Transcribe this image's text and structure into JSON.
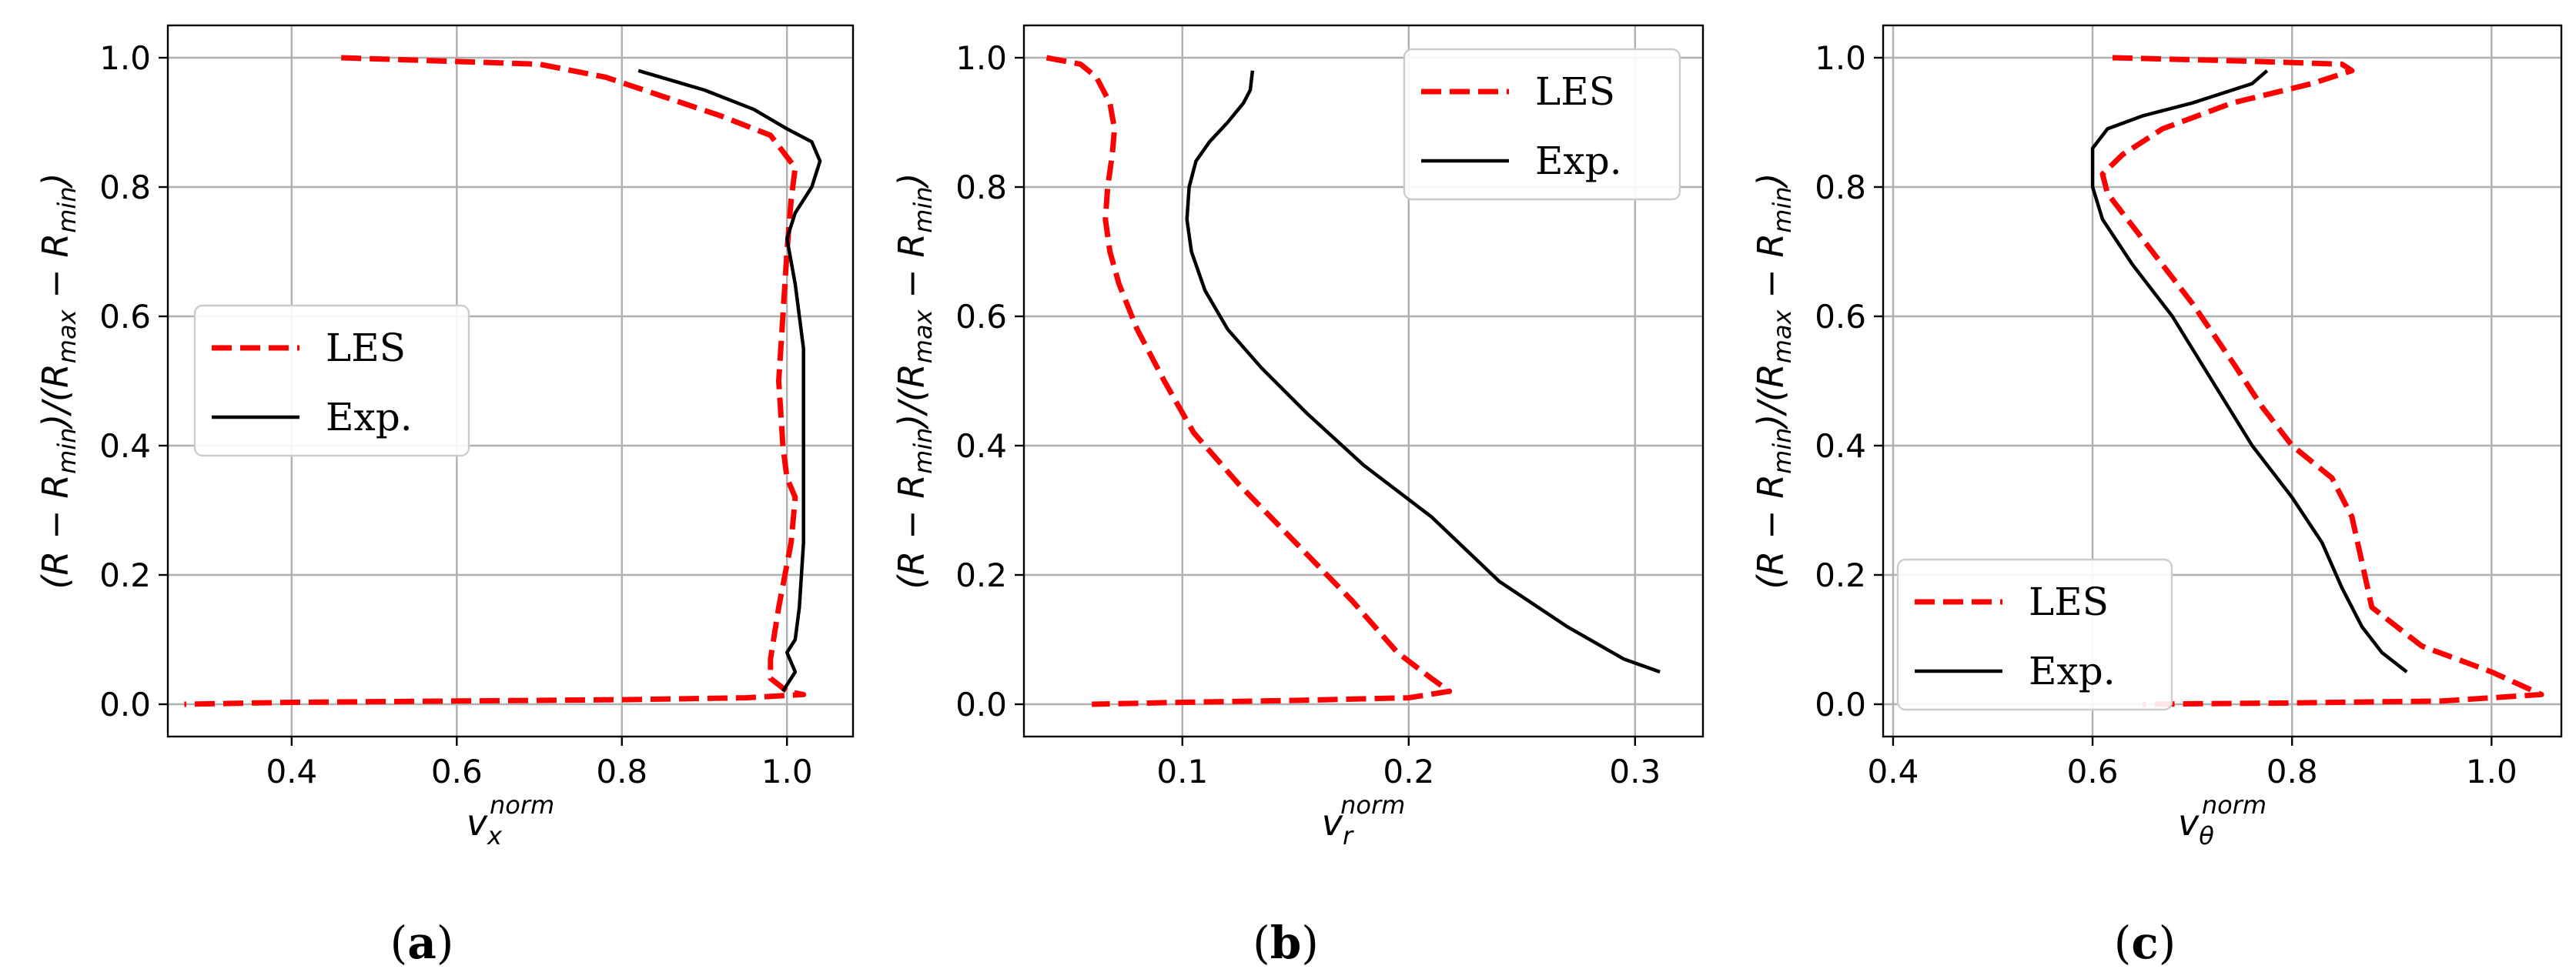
{
  "colors": {
    "les": "#ff0000",
    "exp": "#000000",
    "grid": "#b0b0b0"
  },
  "chart_data": [
    {
      "type": "line",
      "id": "a",
      "caption": "(a)",
      "caption_letter": "a",
      "xlabel": "v_x^norm",
      "xlabel_base": "v",
      "xlabel_sub": "x",
      "xlabel_sup": "norm",
      "ylabel": "(R − R_min)/(R_max − R_min)",
      "xlim": [
        0.25,
        1.08
      ],
      "ylim": [
        -0.05,
        1.05
      ],
      "xticks": [
        0.4,
        0.6,
        0.8,
        1.0
      ],
      "xtick_labels": [
        "0.4",
        "0.6",
        "0.8",
        "1.0"
      ],
      "yticks": [
        0.0,
        0.2,
        0.4,
        0.6,
        0.8,
        1.0
      ],
      "ytick_labels": [
        "0.0",
        "0.2",
        "0.4",
        "0.6",
        "0.8",
        "1.0"
      ],
      "grid": true,
      "legend": "center-left",
      "series": [
        {
          "name": "LES",
          "style": "dashed",
          "x": [
            0.46,
            0.7,
            0.78,
            0.85,
            0.92,
            0.98,
            1.01,
            1.005,
            1.0,
            0.995,
            0.99,
            0.995,
            1.0,
            1.01,
            1.005,
            0.99,
            0.98,
            0.98,
            0.99,
            1.0,
            1.02,
            0.95,
            0.8,
            0.6,
            0.4,
            0.27
          ],
          "y": [
            1.0,
            0.99,
            0.97,
            0.94,
            0.91,
            0.88,
            0.83,
            0.78,
            0.7,
            0.6,
            0.5,
            0.4,
            0.35,
            0.32,
            0.25,
            0.15,
            0.07,
            0.04,
            0.03,
            0.02,
            0.015,
            0.01,
            0.007,
            0.005,
            0.003,
            0.0
          ]
        },
        {
          "name": "Exp.",
          "style": "solid",
          "x": [
            0.82,
            0.9,
            0.96,
            1.0,
            1.03,
            1.04,
            1.03,
            1.01,
            1.0,
            1.01,
            1.02,
            1.02,
            1.02,
            1.02,
            1.015,
            1.01,
            1.0,
            1.01,
            1.0,
            0.995
          ],
          "y": [
            0.98,
            0.95,
            0.92,
            0.89,
            0.87,
            0.84,
            0.8,
            0.76,
            0.72,
            0.65,
            0.55,
            0.45,
            0.35,
            0.25,
            0.15,
            0.1,
            0.08,
            0.05,
            0.03,
            0.02
          ]
        }
      ]
    },
    {
      "type": "line",
      "id": "b",
      "caption": "(b)",
      "caption_letter": "b",
      "xlabel": "v_r^norm",
      "xlabel_base": "v",
      "xlabel_sub": "r",
      "xlabel_sup": "norm",
      "ylabel": "(R − R_min)/(R_max − R_min)",
      "xlim": [
        0.03,
        0.33
      ],
      "ylim": [
        -0.05,
        1.05
      ],
      "xticks": [
        0.1,
        0.2,
        0.3
      ],
      "xtick_labels": [
        "0.1",
        "0.2",
        "0.3"
      ],
      "yticks": [
        0.0,
        0.2,
        0.4,
        0.6,
        0.8,
        1.0
      ],
      "ytick_labels": [
        "0.0",
        "0.2",
        "0.4",
        "0.6",
        "0.8",
        "1.0"
      ],
      "grid": true,
      "legend": "upper-right",
      "series": [
        {
          "name": "LES",
          "style": "dashed",
          "x": [
            0.04,
            0.055,
            0.062,
            0.068,
            0.07,
            0.069,
            0.067,
            0.066,
            0.068,
            0.072,
            0.08,
            0.092,
            0.105,
            0.125,
            0.15,
            0.175,
            0.195,
            0.21,
            0.218,
            0.2,
            0.15,
            0.1,
            0.06
          ],
          "y": [
            1.0,
            0.99,
            0.97,
            0.93,
            0.89,
            0.85,
            0.8,
            0.75,
            0.7,
            0.65,
            0.58,
            0.5,
            0.42,
            0.34,
            0.25,
            0.16,
            0.08,
            0.04,
            0.02,
            0.01,
            0.006,
            0.003,
            0.0
          ]
        },
        {
          "name": "Exp.",
          "style": "solid",
          "x": [
            0.131,
            0.13,
            0.127,
            0.12,
            0.112,
            0.106,
            0.103,
            0.102,
            0.104,
            0.11,
            0.12,
            0.135,
            0.155,
            0.18,
            0.21,
            0.24,
            0.27,
            0.295,
            0.311
          ],
          "y": [
            0.98,
            0.95,
            0.93,
            0.9,
            0.87,
            0.84,
            0.8,
            0.75,
            0.7,
            0.64,
            0.58,
            0.52,
            0.45,
            0.37,
            0.29,
            0.19,
            0.12,
            0.07,
            0.05
          ]
        }
      ]
    },
    {
      "type": "line",
      "id": "c",
      "caption": "(c)",
      "caption_letter": "c",
      "xlabel": "v_θ^norm",
      "xlabel_base": "v",
      "xlabel_sub": "θ",
      "xlabel_sup": "norm",
      "ylabel": "(R − R_min)/(R_max − R_min)",
      "xlim": [
        0.39,
        1.07
      ],
      "ylim": [
        -0.05,
        1.05
      ],
      "xticks": [
        0.4,
        0.6,
        0.8,
        1.0
      ],
      "xtick_labels": [
        "0.4",
        "0.6",
        "0.8",
        "1.0"
      ],
      "yticks": [
        0.0,
        0.2,
        0.4,
        0.6,
        0.8,
        1.0
      ],
      "ytick_labels": [
        "0.0",
        "0.2",
        "0.4",
        "0.6",
        "0.8",
        "1.0"
      ],
      "grid": true,
      "legend": "lower-left",
      "series": [
        {
          "name": "LES",
          "style": "dashed",
          "x": [
            0.62,
            0.75,
            0.85,
            0.86,
            0.82,
            0.74,
            0.67,
            0.63,
            0.61,
            0.615,
            0.63,
            0.66,
            0.7,
            0.74,
            0.77,
            0.8,
            0.84,
            0.86,
            0.87,
            0.88,
            0.93,
            1.0,
            1.05,
            0.95,
            0.8,
            0.65
          ],
          "y": [
            1.0,
            0.995,
            0.99,
            0.98,
            0.96,
            0.93,
            0.89,
            0.85,
            0.82,
            0.79,
            0.76,
            0.7,
            0.62,
            0.53,
            0.46,
            0.4,
            0.35,
            0.29,
            0.22,
            0.15,
            0.09,
            0.05,
            0.015,
            0.005,
            0.002,
            0.0
          ]
        },
        {
          "name": "Exp.",
          "style": "solid",
          "x": [
            0.775,
            0.76,
            0.7,
            0.65,
            0.615,
            0.6,
            0.6,
            0.61,
            0.64,
            0.68,
            0.72,
            0.76,
            0.8,
            0.83,
            0.85,
            0.87,
            0.89,
            0.915
          ],
          "y": [
            0.98,
            0.96,
            0.93,
            0.91,
            0.89,
            0.86,
            0.8,
            0.75,
            0.68,
            0.6,
            0.5,
            0.4,
            0.32,
            0.25,
            0.18,
            0.12,
            0.08,
            0.05
          ]
        }
      ]
    }
  ]
}
